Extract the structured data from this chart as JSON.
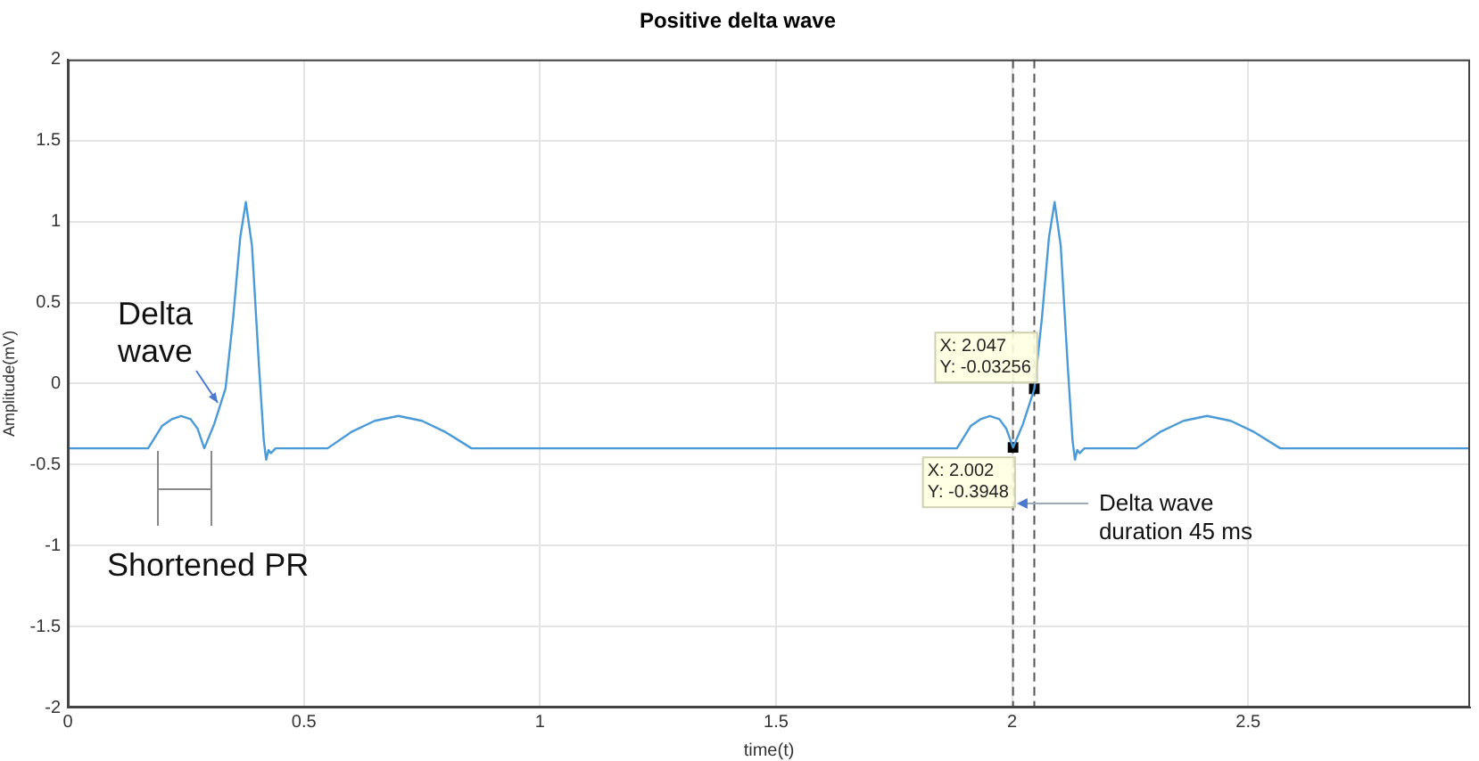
{
  "chart_data": {
    "type": "line",
    "title": "Positive delta wave",
    "xlabel": "time(t)",
    "ylabel": "Amplitude(mV)",
    "xlim": [
      0,
      2.97
    ],
    "xticks": [
      0,
      0.5,
      1,
      1.5,
      2,
      2.5
    ],
    "ylim": [
      -2,
      2
    ],
    "yticks": [
      -2,
      -1.5,
      -1,
      -0.5,
      0,
      0.5,
      1,
      1.5,
      2
    ],
    "grid": true,
    "legend": false,
    "series": [
      {
        "color": "#4a9ad8",
        "marker": "none",
        "x": [
          0,
          0.17,
          0.185,
          0.2,
          0.22,
          0.24,
          0.26,
          0.275,
          0.289,
          0.31,
          0.334,
          0.35,
          0.365,
          0.377,
          0.39,
          0.405,
          0.415,
          0.42,
          0.425,
          0.43,
          0.44,
          0.55,
          0.6,
          0.65,
          0.7,
          0.75,
          0.8,
          0.855,
          1.883,
          1.898,
          1.913,
          1.933,
          1.953,
          1.973,
          1.988,
          2.002,
          2.023,
          2.047,
          2.063,
          2.078,
          2.09,
          2.103,
          2.118,
          2.128,
          2.133,
          2.138,
          2.143,
          2.153,
          2.263,
          2.313,
          2.363,
          2.413,
          2.463,
          2.513,
          2.568,
          2.97
        ],
        "values": [
          -0.4,
          -0.4,
          -0.33,
          -0.26,
          -0.22,
          -0.2,
          -0.22,
          -0.28,
          -0.4,
          -0.25,
          -0.03,
          0.4,
          0.9,
          1.12,
          0.85,
          0.1,
          -0.35,
          -0.47,
          -0.41,
          -0.43,
          -0.4,
          -0.4,
          -0.3,
          -0.23,
          -0.2,
          -0.23,
          -0.3,
          -0.4,
          -0.4,
          -0.33,
          -0.26,
          -0.22,
          -0.2,
          -0.22,
          -0.28,
          -0.3948,
          -0.25,
          -0.03256,
          0.4,
          0.9,
          1.12,
          0.85,
          0.1,
          -0.35,
          -0.47,
          -0.41,
          -0.43,
          -0.4,
          -0.4,
          -0.3,
          -0.23,
          -0.2,
          -0.23,
          -0.3,
          -0.4,
          -0.4
        ]
      },
      {
        "type": "scatter",
        "color": "#000000",
        "marker": "square",
        "x": [
          2.002,
          2.047
        ],
        "values": [
          -0.3948,
          -0.03256
        ]
      }
    ],
    "ref_lines": [
      {
        "axis": "x",
        "value": 2.002,
        "color": "#555555",
        "line_style": "dashed"
      },
      {
        "axis": "x",
        "value": 2.047,
        "color": "#555555",
        "line_style": "dashed"
      }
    ],
    "annotations": [
      "Delta\nwave",
      "Shortened PR",
      {
        "text": "X: 2.047\nY: -0.03256",
        "x": 2.047,
        "y": -0.03256
      },
      {
        "text": "X: 2.002\nY: -0.3948",
        "x": 2.002,
        "y": -0.3948
      },
      {
        "text": "Delta wave\nduration 45 ms",
        "x": 2.01,
        "y": -0.74
      }
    ]
  }
}
